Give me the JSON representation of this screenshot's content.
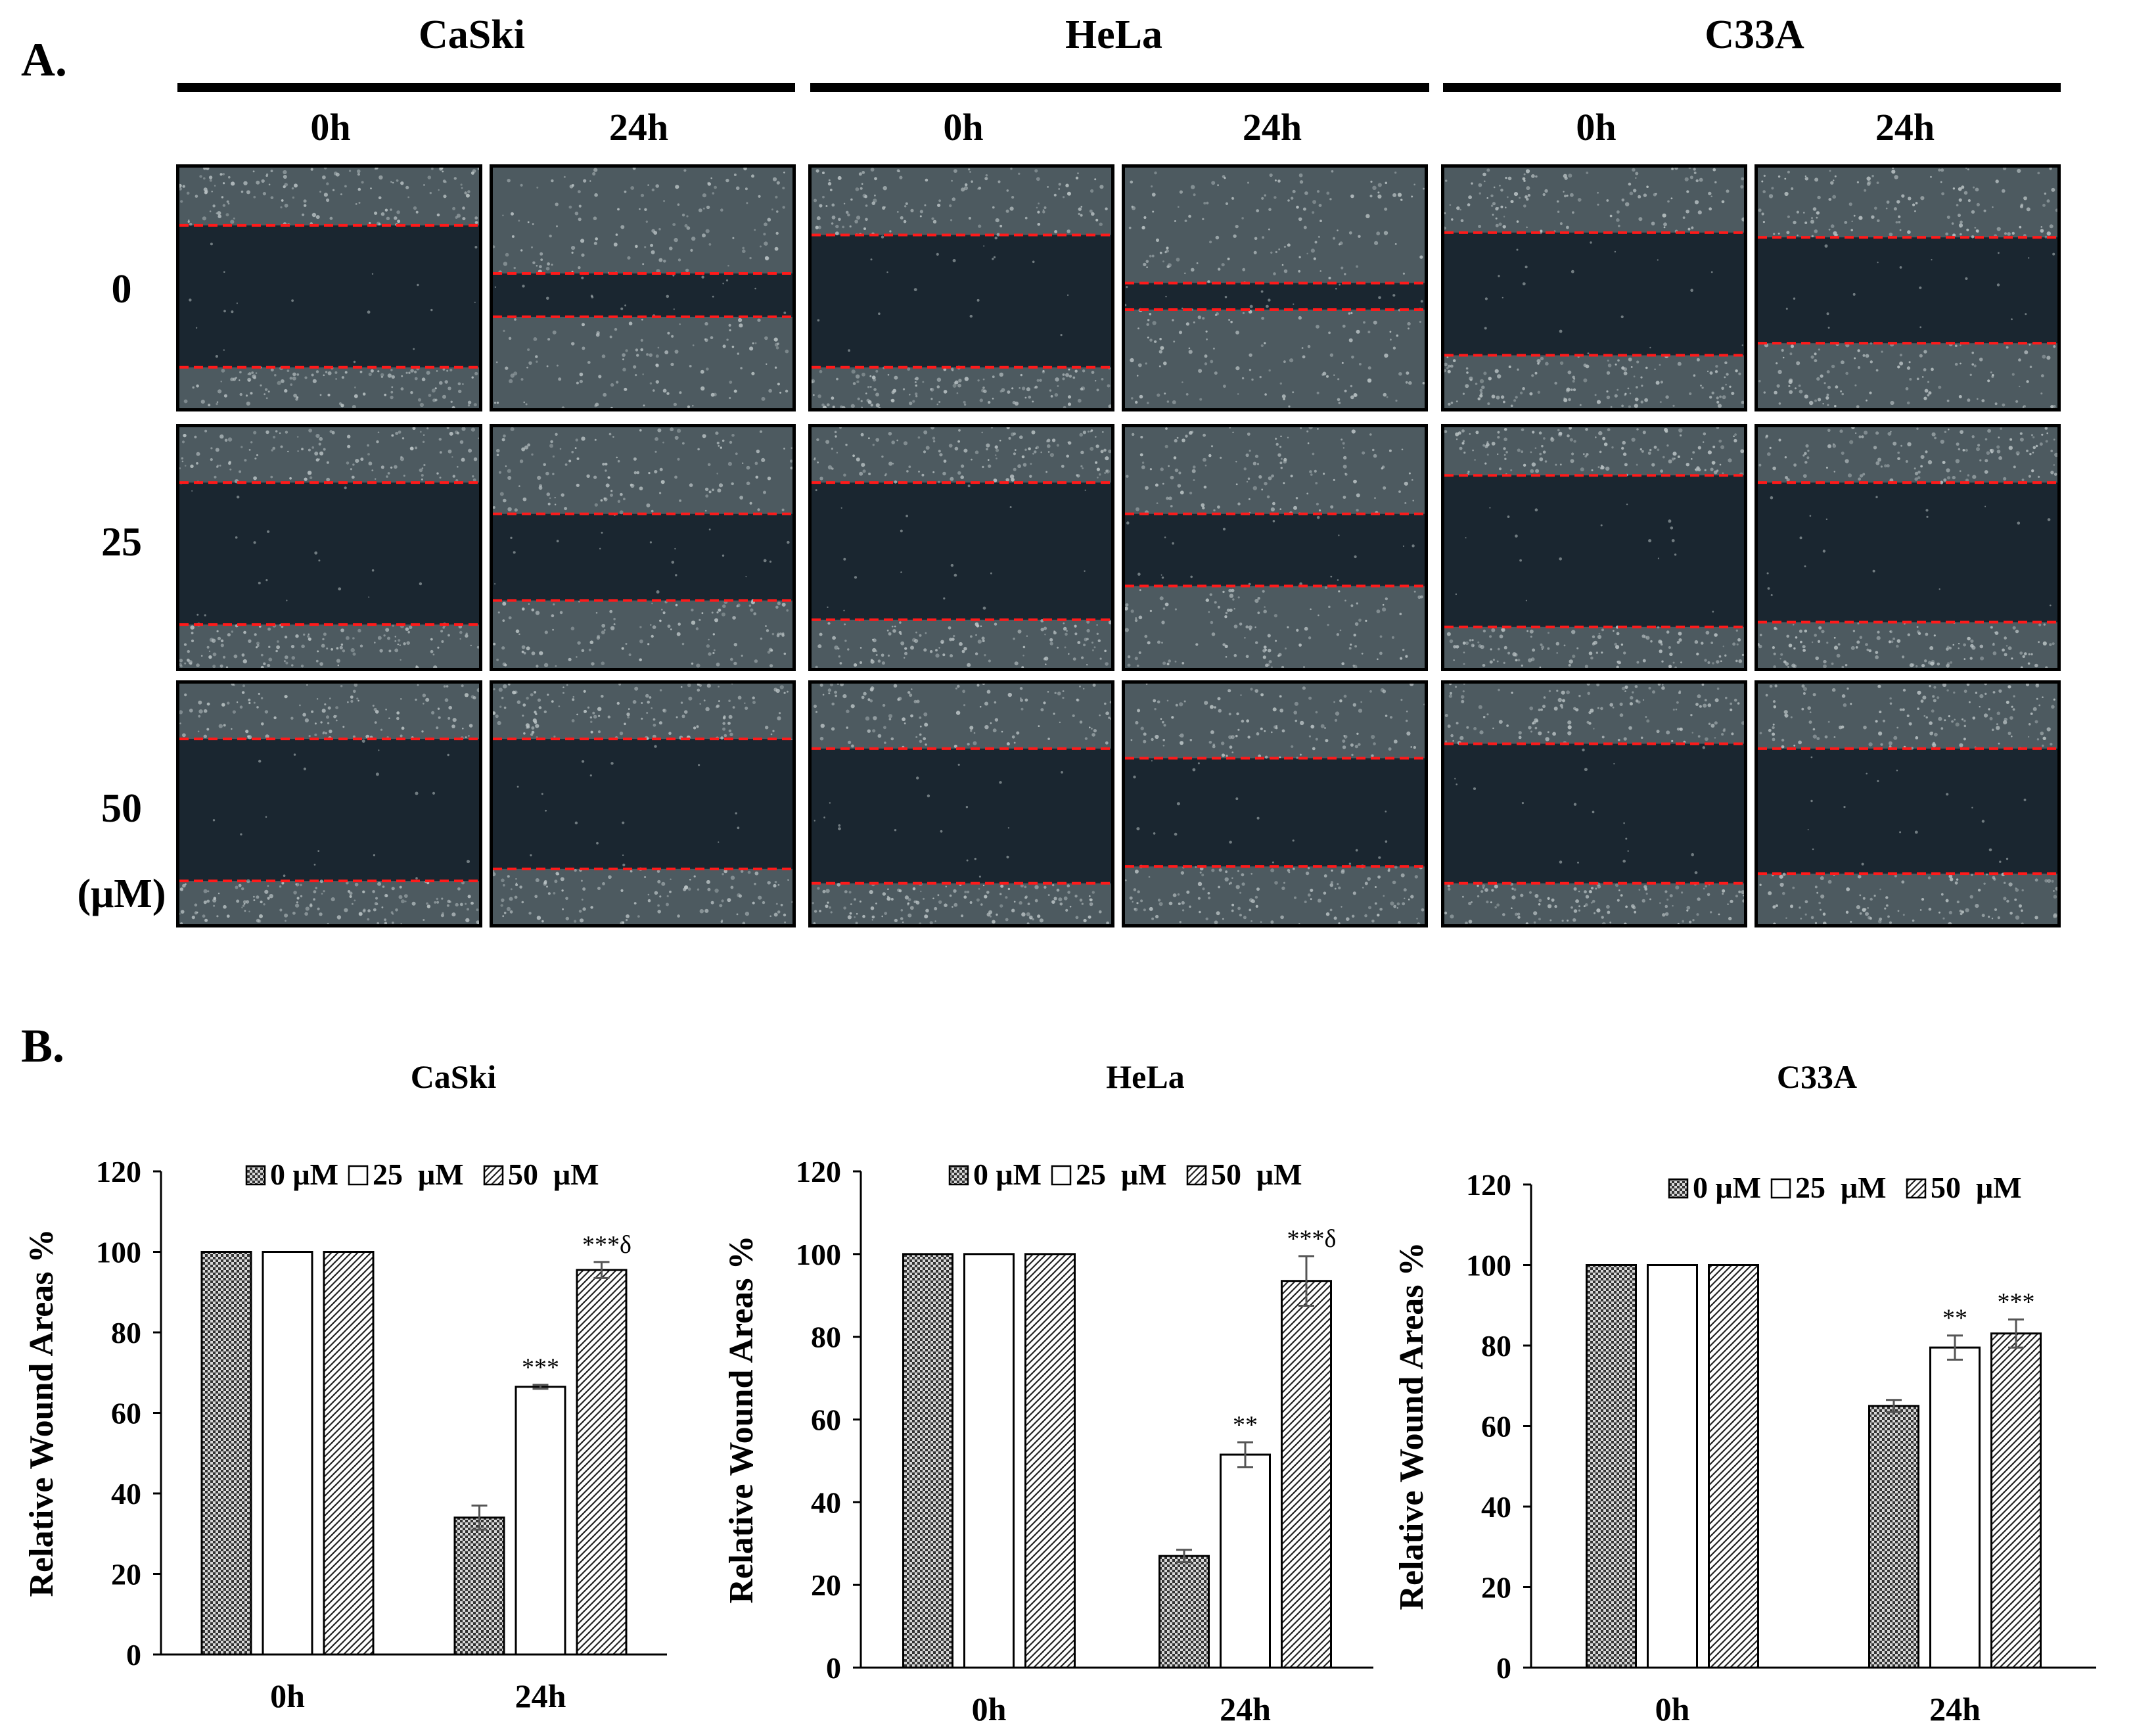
{
  "panel_a": {
    "label": "A.",
    "cell_lines": [
      "CaSki",
      "HeLa",
      "C33A"
    ],
    "timepoints": [
      "0h",
      "24h"
    ],
    "doses": [
      "0",
      "25",
      "50"
    ],
    "dose_unit": "(μM)",
    "colors": {
      "dashed_line": "#ff1a1a",
      "cell_layer": "#b9c2c4",
      "wound_gap": "#1a2630"
    }
  },
  "panel_b": {
    "label": "B."
  },
  "chart_data": [
    {
      "type": "bar",
      "title": "CaSki",
      "categories": [
        "0h",
        "24h"
      ],
      "ylabel": "Relative Wound Areas %",
      "xlabel": "",
      "ylim": [
        0,
        120
      ],
      "yticks": [
        "0",
        "20",
        "40",
        "60",
        "80",
        "100",
        "120"
      ],
      "legend_position": "top",
      "series": [
        {
          "name": "0 μM",
          "pattern": "checker",
          "values": [
            100,
            34
          ],
          "errors": [
            0,
            3
          ]
        },
        {
          "name": "25  μM",
          "pattern": "empty",
          "values": [
            100,
            66.5
          ],
          "errors": [
            0,
            0.5
          ]
        },
        {
          "name": "50  μM",
          "pattern": "diagonal",
          "values": [
            100,
            95.5
          ],
          "errors": [
            0,
            2
          ]
        }
      ],
      "annotations": [
        {
          "category": "24h",
          "series": "25  μM",
          "text": "***"
        },
        {
          "category": "24h",
          "series": "50  μM",
          "text": "***δ"
        }
      ]
    },
    {
      "type": "bar",
      "title": "HeLa",
      "categories": [
        "0h",
        "24h"
      ],
      "ylabel": "Relative Wound Areas %",
      "xlabel": "",
      "ylim": [
        0,
        120
      ],
      "yticks": [
        "0",
        "20",
        "40",
        "60",
        "80",
        "100",
        "120"
      ],
      "legend_position": "top",
      "series": [
        {
          "name": "0 μM",
          "pattern": "checker",
          "values": [
            100,
            27
          ],
          "errors": [
            0,
            1.5
          ]
        },
        {
          "name": "25  μM",
          "pattern": "empty",
          "values": [
            100,
            51.5
          ],
          "errors": [
            0,
            3
          ]
        },
        {
          "name": "50  μM",
          "pattern": "diagonal",
          "values": [
            100,
            93.5
          ],
          "errors": [
            0,
            6
          ]
        }
      ],
      "annotations": [
        {
          "category": "24h",
          "series": "25  μM",
          "text": "**"
        },
        {
          "category": "24h",
          "series": "50  μM",
          "text": "***δ"
        }
      ]
    },
    {
      "type": "bar",
      "title": "C33A",
      "categories": [
        "0h",
        "24h"
      ],
      "ylabel": "Relative Wound Areas %",
      "xlabel": "",
      "ylim": [
        0,
        120
      ],
      "yticks": [
        "0",
        "20",
        "40",
        "60",
        "80",
        "100",
        "120"
      ],
      "legend_position": "top",
      "series": [
        {
          "name": "0 μM",
          "pattern": "checker",
          "values": [
            100,
            65
          ],
          "errors": [
            0,
            1.5
          ]
        },
        {
          "name": "25  μM",
          "pattern": "empty",
          "values": [
            100,
            79.5
          ],
          "errors": [
            0,
            3
          ]
        },
        {
          "name": "50  μM",
          "pattern": "diagonal",
          "values": [
            100,
            83
          ],
          "errors": [
            0,
            3.5
          ]
        }
      ],
      "annotations": [
        {
          "category": "24h",
          "series": "25  μM",
          "text": "**"
        },
        {
          "category": "24h",
          "series": "50  μM",
          "text": "***"
        }
      ]
    }
  ]
}
